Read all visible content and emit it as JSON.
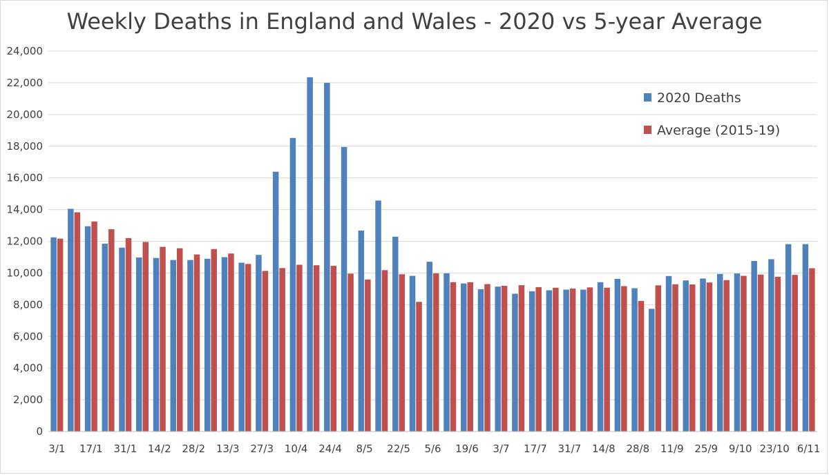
{
  "chart_data": {
    "type": "bar",
    "title": "Weekly Deaths in England and Wales - 2020 vs 5-year Average",
    "xlabel": "",
    "ylabel": "",
    "ylim": [
      0,
      24000
    ],
    "yticks": [
      "0",
      "2,000",
      "4,000",
      "6,000",
      "8,000",
      "10,000",
      "12,000",
      "14,000",
      "16,000",
      "18,000",
      "20,000",
      "22,000",
      "24,000"
    ],
    "ytick_values": [
      0,
      2000,
      4000,
      6000,
      8000,
      10000,
      12000,
      14000,
      16000,
      18000,
      20000,
      22000,
      24000
    ],
    "grid": true,
    "legend_position": "top-right",
    "categories": [
      "3/1",
      "10/1",
      "17/1",
      "24/1",
      "31/1",
      "7/2",
      "14/2",
      "21/2",
      "28/2",
      "6/3",
      "13/3",
      "20/3",
      "27/3",
      "3/4",
      "10/4",
      "17/4",
      "24/4",
      "1/5",
      "8/5",
      "15/5",
      "22/5",
      "29/5",
      "5/6",
      "12/6",
      "19/6",
      "26/6",
      "3/7",
      "10/7",
      "17/7",
      "24/7",
      "31/7",
      "7/8",
      "14/8",
      "21/8",
      "28/8",
      "4/9",
      "11/9",
      "18/9",
      "25/9",
      "2/10",
      "9/10",
      "16/10",
      "23/10",
      "30/10",
      "6/11"
    ],
    "xtick_labels_shown": [
      "3/1",
      "17/1",
      "31/1",
      "14/2",
      "28/2",
      "13/3",
      "27/3",
      "10/4",
      "24/4",
      "8/5",
      "22/5",
      "5/6",
      "19/6",
      "3/7",
      "17/7",
      "31/7",
      "14/8",
      "28/8",
      "11/9",
      "25/9",
      "9/10",
      "23/10",
      "6/11"
    ],
    "series": [
      {
        "name": "2020 Deaths",
        "color": "#4f81bd",
        "values": [
          12250,
          14050,
          12950,
          11850,
          11600,
          10980,
          10950,
          10820,
          10820,
          10900,
          11000,
          10650,
          11140,
          16390,
          18520,
          22350,
          22000,
          17950,
          12680,
          14570,
          12290,
          9820,
          10710,
          9980,
          9340,
          8980,
          9140,
          8690,
          8850,
          8910,
          8950,
          8950,
          9420,
          9630,
          9040,
          7740,
          9810,
          9530,
          9650,
          9940,
          9970,
          10760,
          10870,
          11820,
          11820
        ],
        "note": ""
      },
      {
        "name": "Average (2015-19)",
        "color": "#c0504d",
        "values": [
          12170,
          13830,
          13250,
          12760,
          12200,
          11960,
          11650,
          11560,
          11170,
          11510,
          11230,
          10570,
          10130,
          10310,
          10520,
          10490,
          10450,
          9960,
          9590,
          10180,
          9920,
          8180,
          9980,
          9420,
          9420,
          9300,
          9190,
          9230,
          9110,
          9070,
          9020,
          9090,
          9070,
          9170,
          8240,
          9220,
          9290,
          9280,
          9400,
          9550,
          9820,
          9900,
          9760,
          9880,
          10300
        ]
      }
    ]
  }
}
